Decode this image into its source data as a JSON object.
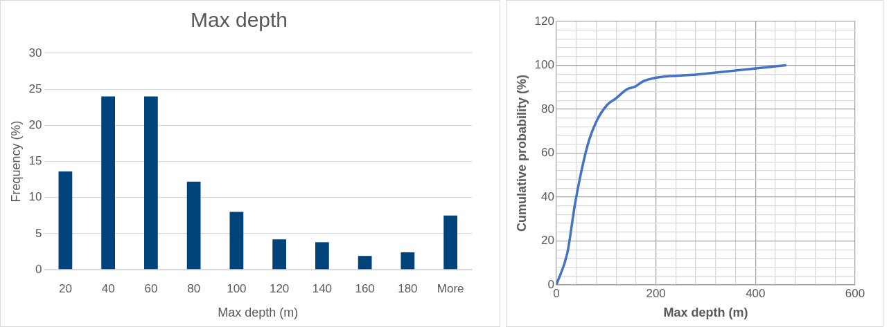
{
  "chart_data": [
    {
      "type": "bar",
      "title": "Max depth",
      "xlabel": "Max depth (m)",
      "ylabel": "Frequency (%)",
      "categories": [
        "20",
        "40",
        "60",
        "80",
        "100",
        "120",
        "140",
        "160",
        "180",
        "More"
      ],
      "values": [
        13.6,
        24,
        24,
        12.2,
        8,
        4.2,
        3.8,
        1.9,
        2.4,
        7.5
      ],
      "color": "#00427a",
      "ylim": [
        0,
        30
      ],
      "yticks": [
        0,
        5,
        10,
        15,
        20,
        25,
        30
      ],
      "grid": "y"
    },
    {
      "type": "line",
      "xlabel": "Max depth (m)",
      "ylabel": "Cumulative probability (%)",
      "x": [
        0,
        22,
        38,
        62,
        81,
        103,
        120,
        141,
        158,
        177,
        283,
        460
      ],
      "values": [
        0,
        14.5,
        37.6,
        63,
        74.7,
        82.2,
        85,
        89,
        90.3,
        93,
        95.8,
        100
      ],
      "color": "#4472c4",
      "xlim": [
        0,
        600
      ],
      "xticks": [
        0,
        {
          "value": 40,
          "label": null
        },
        {
          "value": 80,
          "label": null
        },
        {
          "value": 120,
          "label": null
        },
        {
          "value": 160,
          "label": null
        },
        200,
        {
          "value": 240,
          "label": null
        },
        {
          "value": 280,
          "label": null
        },
        {
          "value": 320,
          "label": null
        },
        {
          "value": 360,
          "label": null
        },
        400,
        {
          "value": 440,
          "label": null
        },
        {
          "value": 480,
          "label": null
        },
        {
          "value": 520,
          "label": null
        },
        {
          "value": 560,
          "label": null
        },
        600
      ],
      "ylim": [
        0,
        120
      ],
      "yticks": [
        0,
        {
          "value": 4,
          "label": null
        },
        {
          "value": 8,
          "label": null
        },
        {
          "value": 12,
          "label": null
        },
        {
          "value": 16,
          "label": null
        },
        20,
        {
          "value": 24,
          "label": null
        },
        {
          "value": 28,
          "label": null
        },
        {
          "value": 32,
          "label": null
        },
        {
          "value": 36,
          "label": null
        },
        40,
        {
          "value": 44,
          "label": null
        },
        {
          "value": 48,
          "label": null
        },
        {
          "value": 52,
          "label": null
        },
        {
          "value": 56,
          "label": null
        },
        60,
        {
          "value": 64,
          "label": null
        },
        {
          "value": 68,
          "label": null
        },
        {
          "value": 72,
          "label": null
        },
        {
          "value": 76,
          "label": null
        },
        80,
        {
          "value": 84,
          "label": null
        },
        {
          "value": 88,
          "label": null
        },
        {
          "value": 92,
          "label": null
        },
        {
          "value": 96,
          "label": null
        },
        100,
        {
          "value": 104,
          "label": null
        },
        {
          "value": 108,
          "label": null
        },
        {
          "value": 112,
          "label": null
        },
        {
          "value": 116,
          "label": null
        },
        120
      ],
      "grid": true,
      "marker": "none"
    }
  ]
}
